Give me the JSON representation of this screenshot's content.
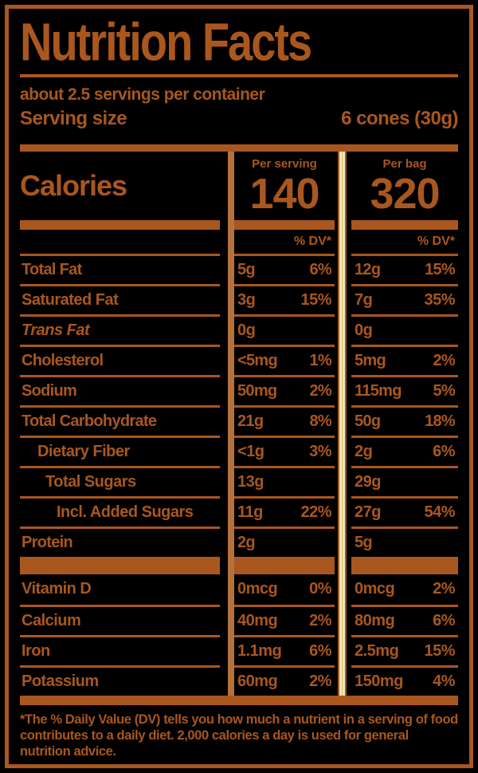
{
  "colors": {
    "ink": "#a9571e",
    "divider_light": "#b4713c",
    "divider_cream": "#ece5c4",
    "divider_yellow": "#ddc94f",
    "background": "#000000"
  },
  "header": {
    "title": "Nutrition Facts",
    "servings_per_container": "about 2.5 servings per container",
    "serving_size_label": "Serving size",
    "serving_size_value": "6 cones (30g)"
  },
  "calories": {
    "label": "Calories",
    "columns": [
      {
        "header": "Per serving",
        "value": "140"
      },
      {
        "header": "Per bag",
        "value": "320"
      }
    ]
  },
  "dv_header": "% DV*",
  "rows": [
    {
      "label": "Total Fat",
      "serving": {
        "amount": "5g",
        "dv": "6%"
      },
      "bag": {
        "amount": "12g",
        "dv": "15%"
      }
    },
    {
      "label": "Saturated Fat",
      "serving": {
        "amount": "3g",
        "dv": "15%"
      },
      "bag": {
        "amount": "7g",
        "dv": "35%"
      }
    },
    {
      "label": "Trans Fat",
      "serving": {
        "amount": "0g",
        "dv": ""
      },
      "bag": {
        "amount": "0g",
        "dv": ""
      }
    },
    {
      "label": "Cholesterol",
      "serving": {
        "amount": "<5mg",
        "dv": "1%"
      },
      "bag": {
        "amount": "5mg",
        "dv": "2%"
      }
    },
    {
      "label": "Sodium",
      "serving": {
        "amount": "50mg",
        "dv": "2%"
      },
      "bag": {
        "amount": "115mg",
        "dv": "5%"
      }
    },
    {
      "label": "Total Carbohydrate",
      "serving": {
        "amount": "21g",
        "dv": "8%"
      },
      "bag": {
        "amount": "50g",
        "dv": "18%"
      }
    },
    {
      "label": "Dietary Fiber",
      "serving": {
        "amount": "<1g",
        "dv": "3%"
      },
      "bag": {
        "amount": "2g",
        "dv": "6%"
      }
    },
    {
      "label": "Total Sugars",
      "serving": {
        "amount": "13g",
        "dv": ""
      },
      "bag": {
        "amount": "29g",
        "dv": ""
      }
    },
    {
      "label": "Incl. Added Sugars",
      "serving": {
        "amount": "11g",
        "dv": "22%"
      },
      "bag": {
        "amount": "27g",
        "dv": "54%"
      }
    },
    {
      "label": "Protein",
      "serving": {
        "amount": "2g",
        "dv": ""
      },
      "bag": {
        "amount": "5g",
        "dv": ""
      }
    }
  ],
  "vitamins": [
    {
      "label": "Vitamin D",
      "serving": {
        "amount": "0mcg",
        "dv": "0%"
      },
      "bag": {
        "amount": "0mcg",
        "dv": "2%"
      }
    },
    {
      "label": "Calcium",
      "serving": {
        "amount": "40mg",
        "dv": "2%"
      },
      "bag": {
        "amount": "80mg",
        "dv": "6%"
      }
    },
    {
      "label": "Iron",
      "serving": {
        "amount": "1.1mg",
        "dv": "6%"
      },
      "bag": {
        "amount": "2.5mg",
        "dv": "15%"
      }
    },
    {
      "label": "Potassium",
      "serving": {
        "amount": "60mg",
        "dv": "2%"
      },
      "bag": {
        "amount": "150mg",
        "dv": "4%"
      }
    }
  ],
  "footnote": "*The % Daily Value (DV) tells you how much a nutrient in a serving of food contributes to a daily diet. 2,000 calories a day is used for general nutrition advice."
}
